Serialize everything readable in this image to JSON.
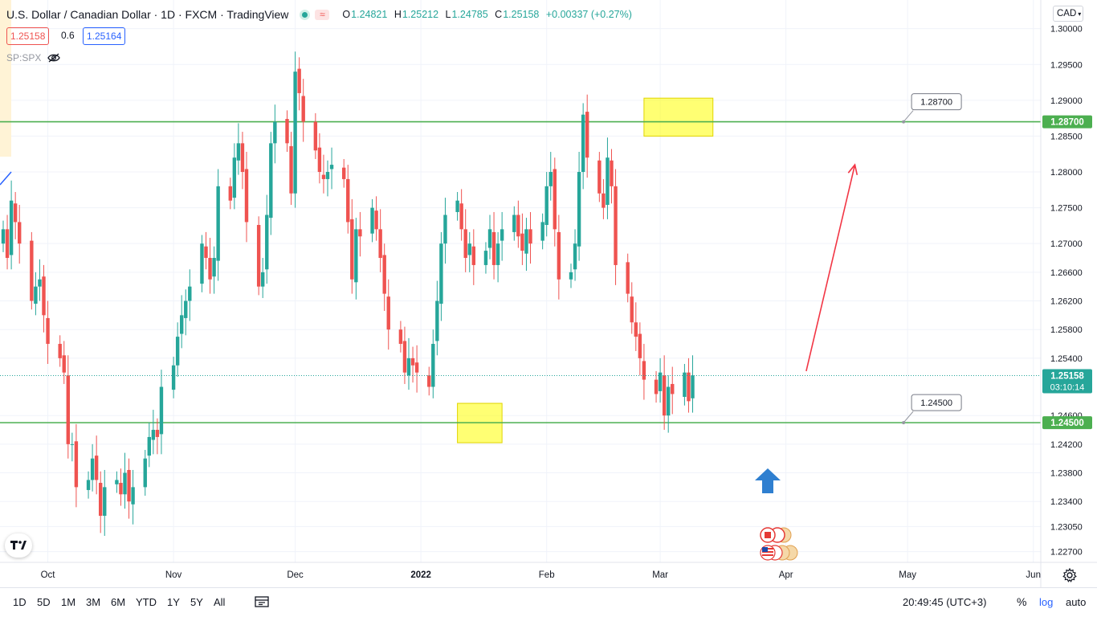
{
  "header": {
    "title": "U.S. Dollar / Canadian Dollar · 1D · FXCM · TradingView",
    "ohlc": [
      {
        "k": "O",
        "v": "1.24821"
      },
      {
        "k": "H",
        "v": "1.25212"
      },
      {
        "k": "L",
        "v": "1.24785"
      },
      {
        "k": "C",
        "v": "1.25158"
      },
      {
        "k": "",
        "v": "+0.00337 (+0.27%)"
      }
    ]
  },
  "trade": {
    "sell": "1.25158",
    "spread": "0.6",
    "buy": "1.25164"
  },
  "compare_symbol": "SP:SPX",
  "currency": "CAD",
  "colors": {
    "up": "#26a69a",
    "down": "#ef5350",
    "level": "#4caf50",
    "zone": "#ffff00",
    "projection": "#f23645",
    "arrow": "#2f7fd0"
  },
  "timeframes": [
    "1D",
    "5D",
    "1M",
    "3M",
    "6M",
    "YTD",
    "1Y",
    "5Y",
    "All"
  ],
  "status": {
    "clock": "20:49:45 (UTC+3)",
    "percent": "%",
    "log": "log",
    "auto": "auto"
  },
  "icons": [
    "tradingview-logo-icon",
    "gear-icon",
    "calendar-range-icon",
    "eye-off-icon",
    "canada-flag-icon",
    "us-flag-icon",
    "blue-up-arrow-icon"
  ],
  "chart_data": {
    "type": "candlestick",
    "symbol": "USDCAD",
    "ylim": [
      1.2255,
      1.304
    ],
    "y_ticks": [
      "1.30000",
      "1.29500",
      "1.29000",
      "1.28500",
      "1.28000",
      "1.27500",
      "1.27000",
      "1.26600",
      "1.26200",
      "1.25800",
      "1.25400",
      "1.24600",
      "1.24200",
      "1.23800",
      "1.23400",
      "1.23050",
      "1.22700"
    ],
    "x_ticks": [
      {
        "date": "2021-10-01",
        "label": "Oct"
      },
      {
        "date": "2021-11-01",
        "label": "Nov"
      },
      {
        "date": "2021-12-01",
        "label": "Dec"
      },
      {
        "date": "2022-01-01",
        "label": "2022"
      },
      {
        "date": "2022-02-01",
        "label": "Feb"
      },
      {
        "date": "2022-03-01",
        "label": "Mar"
      },
      {
        "date": "2022-04-01",
        "label": "Apr"
      },
      {
        "date": "2022-05-01",
        "label": "May"
      },
      {
        "date": "2022-06-01",
        "label": "Jun"
      }
    ],
    "first_date": "2021-09-20",
    "last_date": "2022-04-06",
    "closes": [
      1.272,
      1.268,
      1.276,
      1.273,
      1.27,
      1.262,
      1.264,
      1.265,
      1.26,
      1.256,
      1.254,
      1.252,
      1.242,
      1.242,
      1.236,
      1.237,
      1.24,
      1.237,
      1.232,
      1.236,
      1.237,
      1.235,
      1.238,
      1.234,
      1.236,
      1.24,
      1.243,
      1.244,
      1.243,
      1.25,
      1.253,
      1.257,
      1.26,
      1.262,
      1.264,
      1.27,
      1.268,
      1.265,
      1.268,
      1.278,
      1.276,
      1.282,
      1.284,
      1.28,
      1.273,
      1.264,
      1.266,
      1.274,
      1.284,
      1.287,
      1.284,
      1.277,
      1.294,
      1.291,
      1.287,
      1.283,
      1.28,
      1.279,
      1.28,
      1.281,
      1.279,
      1.273,
      1.265,
      1.272,
      1.271,
      1.275,
      1.272,
      1.268,
      1.263,
      1.258,
      1.256,
      1.252,
      1.254,
      1.253,
      1.252,
      1.25,
      1.256,
      1.262,
      1.27,
      1.274,
      1.276,
      1.272,
      1.268,
      1.27,
      1.267,
      1.269,
      1.272,
      1.267,
      1.27,
      1.272,
      1.274,
      1.271,
      1.269,
      1.272,
      1.27,
      1.273,
      1.278,
      1.28,
      1.272,
      1.265,
      1.266,
      1.27,
      1.28,
      1.288,
      1.282,
      1.277,
      1.275,
      1.282,
      1.278,
      1.267,
      1.263,
      1.259,
      1.257,
      1.254,
      1.251,
      1.249,
      1.252,
      1.246,
      1.25,
      1.249,
      1.252,
      1.248,
      1.2516
    ],
    "price_labels": [
      {
        "value": 1.287,
        "label": "1.28700"
      },
      {
        "value": 1.245,
        "label": "1.24500"
      },
      {
        "value": 1.25158,
        "label": "1.25158",
        "countdown": "03:10:14"
      }
    ],
    "horizontal_levels": [
      {
        "value": 1.287,
        "label": "1.28700"
      },
      {
        "value": 1.245,
        "label": "1.24500"
      }
    ],
    "zones": [
      {
        "from_date": "2022-01-10",
        "to_date": "2022-01-21",
        "y0": 1.2422,
        "y1": 1.2477
      },
      {
        "from_date": "2022-02-25",
        "to_date": "2022-03-14",
        "y0": 1.285,
        "y1": 1.2903
      }
    ],
    "projection_arrow": {
      "from_date": "2022-04-06",
      "from": 1.2522,
      "to_date": "2022-04-18",
      "to": 1.281
    },
    "last_price": 1.25158
  }
}
